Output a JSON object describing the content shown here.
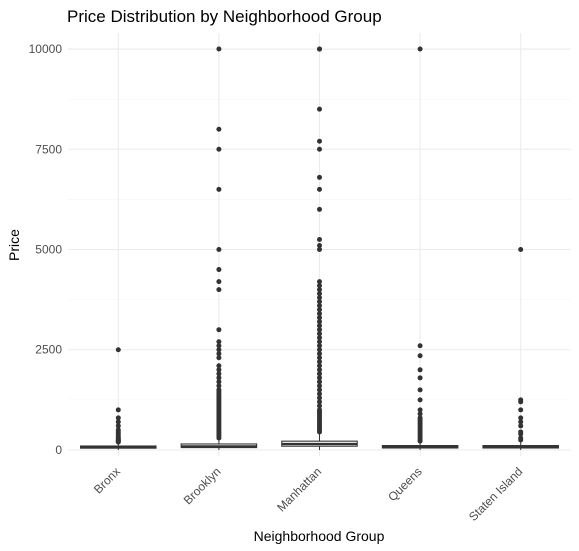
{
  "chart_data": {
    "type": "boxplot",
    "title": "Price Distribution by Neighborhood Group",
    "xlabel": "Neighborhood Group",
    "ylabel": "Price",
    "ylim": [
      -150,
      10400
    ],
    "yticks": [
      0,
      2500,
      5000,
      7500,
      10000
    ],
    "grid": true,
    "theme": "minimal",
    "colors": {
      "box_stroke": "#333333",
      "box_fill": "#ffffff",
      "outlier": "#333333"
    },
    "categories": [
      "Bronx",
      "Brooklyn",
      "Manhattan",
      "Queens",
      "Staten Island"
    ],
    "boxes": [
      {
        "name": "Bronx",
        "q1": 45,
        "median": 65,
        "q3": 99,
        "whisker_low": 0,
        "whisker_high": 180,
        "outliers": [
          2500,
          1000,
          800,
          700,
          600,
          500,
          450,
          400,
          350,
          300,
          280,
          250,
          230,
          210,
          195
        ]
      },
      {
        "name": "Brooklyn",
        "q1": 60,
        "median": 90,
        "q3": 150,
        "whisker_low": 0,
        "whisker_high": 285,
        "outliers": [
          10000,
          8000,
          7500,
          6500,
          5000,
          4500,
          4200,
          4000,
          3000,
          2700,
          2600,
          2500,
          2400,
          2300,
          2100,
          2000,
          1900,
          1800,
          1700,
          1600,
          1500,
          1450,
          1400,
          1350,
          1300,
          1250,
          1200,
          1150,
          1100,
          1050,
          1000,
          950,
          900,
          850,
          800,
          750,
          700,
          650,
          600,
          550,
          500,
          450,
          400,
          350,
          300
        ]
      },
      {
        "name": "Manhattan",
        "q1": 95,
        "median": 150,
        "q3": 220,
        "whisker_low": 0,
        "whisker_high": 405,
        "outliers": [
          10000,
          9999,
          8500,
          7700,
          7500,
          6800,
          6500,
          6000,
          5250,
          5100,
          5000,
          4200,
          4100,
          4000,
          3900,
          3800,
          3700,
          3600,
          3500,
          3400,
          3300,
          3200,
          3100,
          3000,
          2900,
          2800,
          2700,
          2600,
          2500,
          2400,
          2300,
          2200,
          2100,
          2000,
          1900,
          1800,
          1700,
          1600,
          1500,
          1400,
          1300,
          1200,
          1100,
          1000,
          950,
          900,
          850,
          800,
          750,
          700,
          650,
          600,
          550,
          500,
          450
        ]
      },
      {
        "name": "Queens",
        "q1": 50,
        "median": 75,
        "q3": 110,
        "whisker_low": 0,
        "whisker_high": 200,
        "outliers": [
          10000,
          2600,
          2350,
          2000,
          1800,
          1500,
          1250,
          1000,
          900,
          800,
          750,
          700,
          650,
          600,
          550,
          500,
          450,
          400,
          350,
          300,
          250,
          220
        ]
      },
      {
        "name": "Staten Island",
        "q1": 50,
        "median": 75,
        "q3": 110,
        "whisker_low": 0,
        "whisker_high": 200,
        "outliers": [
          5000,
          1250,
          1200,
          1000,
          800,
          700,
          600,
          450,
          400,
          300,
          250
        ]
      }
    ]
  }
}
